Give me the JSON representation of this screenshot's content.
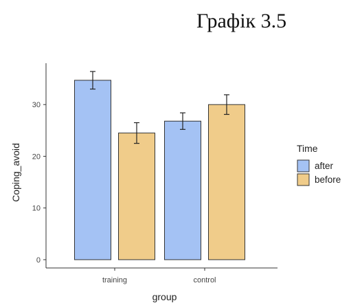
{
  "figure_title": "Графік 3.5",
  "chart_data": {
    "type": "bar",
    "categories": [
      "training",
      "control"
    ],
    "series": [
      {
        "name": "after",
        "values": [
          34.7,
          26.8
        ],
        "error": [
          1.7,
          1.6
        ],
        "color": "#a4c2f4"
      },
      {
        "name": "before",
        "values": [
          24.5,
          30.0
        ],
        "error": [
          2.0,
          1.9
        ],
        "color": "#f0cc8a"
      }
    ],
    "xlabel": "group",
    "ylabel": "Coping_avoid",
    "yticks": [
      0,
      10,
      20,
      30
    ],
    "ylim": [
      -1.6,
      38
    ],
    "legend": {
      "title": "Time",
      "position": "right"
    },
    "grid": false
  }
}
